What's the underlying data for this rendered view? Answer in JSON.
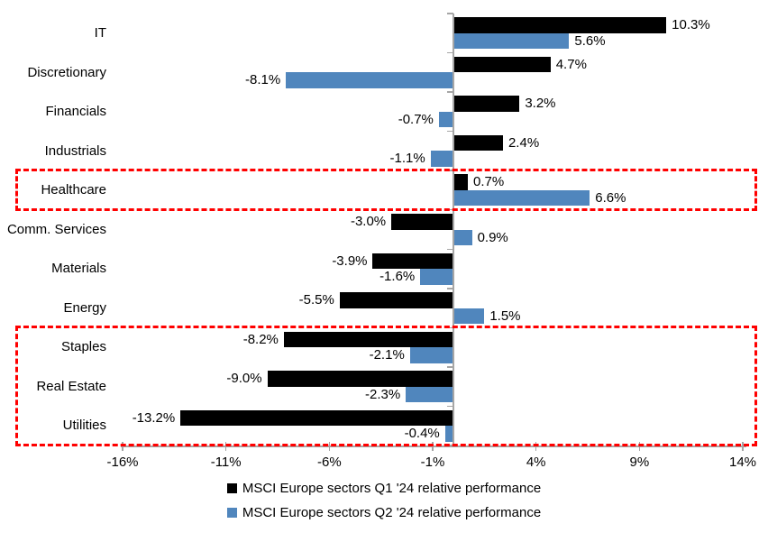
{
  "chart_data": {
    "type": "bar",
    "orientation": "horizontal",
    "title": "",
    "categories": [
      "IT",
      "Discretionary",
      "Financials",
      "Industrials",
      "Healthcare",
      "Comm. Services",
      "Materials",
      "Energy",
      "Staples",
      "Real Estate",
      "Utilities"
    ],
    "series": [
      {
        "name": "MSCI Europe sectors Q1 '24 relative performance",
        "color": "#000000",
        "values": [
          10.3,
          4.7,
          3.2,
          2.4,
          0.7,
          -3.0,
          -3.9,
          -5.5,
          -8.2,
          -9.0,
          -13.2
        ],
        "labels": [
          "10.3%",
          "4.7%",
          "3.2%",
          "2.4%",
          "0.7%",
          "-3.0%",
          "-3.9%",
          "-5.5%",
          "-8.2%",
          "-9.0%",
          "-13.2%"
        ]
      },
      {
        "name": "MSCI Europe sectors Q2 '24 relative performance",
        "color": "#5086bd",
        "values": [
          5.6,
          -8.1,
          -0.7,
          -1.1,
          6.6,
          0.9,
          -1.6,
          1.5,
          -2.1,
          -2.3,
          -0.4
        ],
        "labels": [
          "5.6%",
          "-8.1%",
          "-0.7%",
          "-1.1%",
          "6.6%",
          "0.9%",
          "-1.6%",
          "1.5%",
          "-2.1%",
          "-2.3%",
          "-0.4%"
        ]
      }
    ],
    "x_axis": {
      "min": -16,
      "max": 14,
      "tick_interval": 5,
      "tick_labels": [
        "-16%",
        "-11%",
        "-6%",
        "-1%",
        "4%",
        "9%",
        "14%"
      ],
      "unit": "%"
    },
    "grid": false,
    "legend_position": "bottom",
    "highlights": [
      {
        "categories": [
          "Healthcare"
        ],
        "style": "red-dashed-box"
      },
      {
        "categories": [
          "Staples",
          "Real Estate",
          "Utilities"
        ],
        "style": "red-dashed-box"
      }
    ]
  },
  "colors": {
    "q1_bar": "#000000",
    "q2_bar": "#5086bd",
    "highlight_border": "#ff0000",
    "axis_line": "#a6a6a6",
    "text": "#000000",
    "background": "#ffffff"
  }
}
